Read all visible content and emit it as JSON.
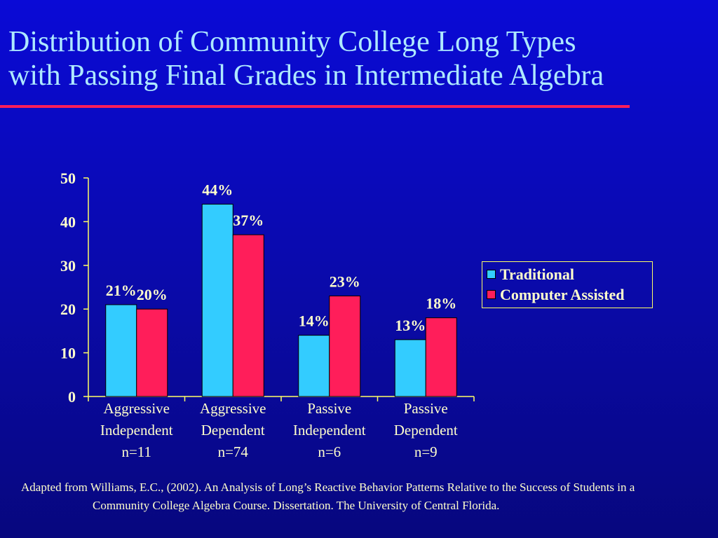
{
  "slide": {
    "title_line1": "Distribution of Community College Long Types",
    "title_line2": "with Passing Final Grades in Intermediate Algebra",
    "citation": "Adapted from Williams, E.C., (2002). An Analysis of Long’s Reactive Behavior Patterns Relative to the Success of Students in a Community College Algebra Course. Dissertation. The University of Central Florida."
  },
  "colors": {
    "traditional": "#33ccff",
    "computer_assisted": "#ff1e5a",
    "text": "#ffffcc",
    "axis": "#ffff66",
    "title": "#aee9ff"
  },
  "chart_data": {
    "type": "bar",
    "categories": [
      [
        "Aggressive",
        "Independent",
        "n=11"
      ],
      [
        "Aggressive",
        "Dependent",
        "n=74"
      ],
      [
        "Passive",
        "Independent",
        "n=6"
      ],
      [
        "Passive",
        "Dependent",
        "n=9"
      ]
    ],
    "series": [
      {
        "name": "Traditional",
        "values": [
          21,
          44,
          14,
          13
        ],
        "labels": [
          "21%",
          "44%",
          "14%",
          "13%"
        ]
      },
      {
        "name": "Computer Assisted",
        "values": [
          20,
          37,
          23,
          18
        ],
        "labels": [
          "20%",
          "37%",
          "23%",
          "18%"
        ]
      }
    ],
    "ylim": [
      0,
      50
    ],
    "yticks": [
      "0",
      "10",
      "20",
      "30",
      "40",
      "50"
    ],
    "grid": false,
    "legend_position": "right"
  }
}
